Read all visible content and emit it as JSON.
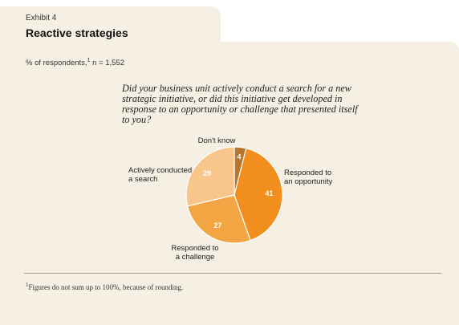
{
  "header": {
    "exhibit": "Exhibit 4",
    "title": "Reactive strategies",
    "subtitle": "% of respondents,",
    "subtitle_sup": "1",
    "subtitle_n": " n = 1,552"
  },
  "question": "Did your business unit actively conduct a search for a new strategic initiative, or did this initiative get developed in response to an opportunity or challenge that presented itself to you?",
  "footnote": {
    "sup": "1",
    "text": "Figures do not sum up to 100%, because of rounding."
  },
  "chart_data": {
    "type": "pie",
    "slices": [
      {
        "label": "Don't know",
        "value": 4,
        "color": "#b7762d"
      },
      {
        "label": "Responded to an opportunity",
        "value": 41,
        "color": "#f08f1d"
      },
      {
        "label": "Responded to a challenge",
        "value": 27,
        "color": "#f3a544"
      },
      {
        "label": "Actively conducted a search",
        "value": 29,
        "color": "#f8c58a"
      }
    ],
    "labels": [
      {
        "lines": [
          "Don't know"
        ]
      },
      {
        "lines": [
          "Responded to",
          "an opportunity"
        ]
      },
      {
        "lines": [
          "Responded to",
          "a challenge"
        ]
      },
      {
        "lines": [
          "Actively conducted",
          "a search"
        ]
      }
    ]
  }
}
